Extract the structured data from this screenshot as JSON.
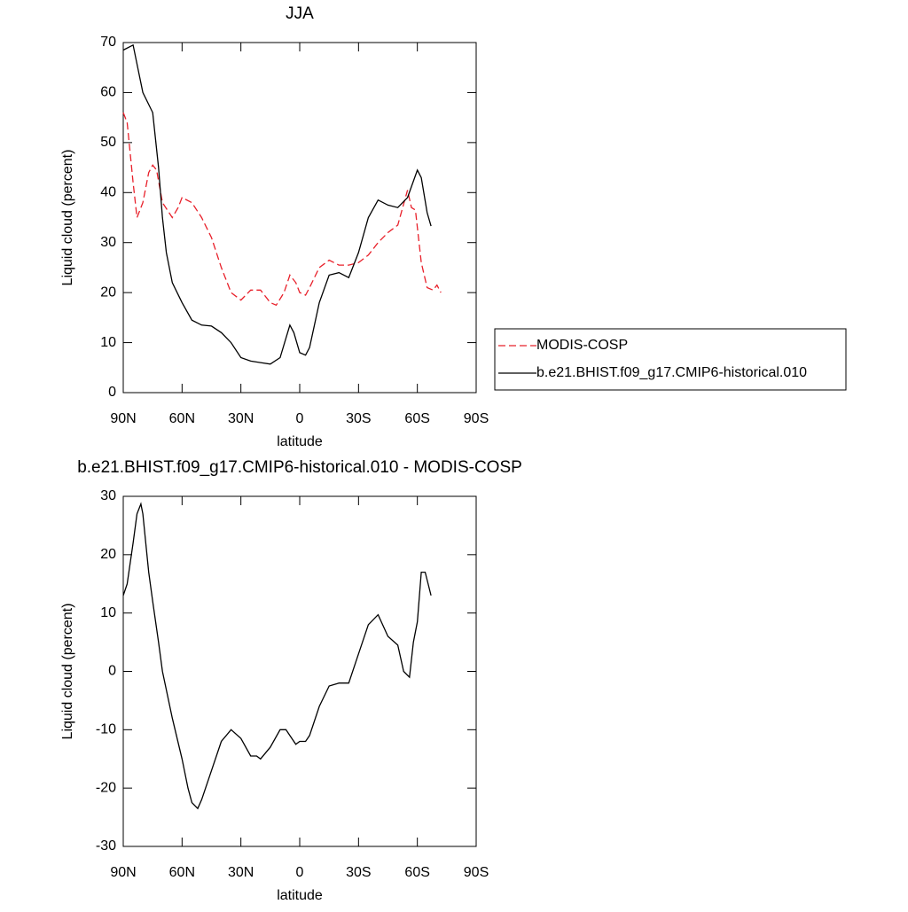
{
  "chart_data": [
    {
      "type": "line",
      "title": "JJA",
      "xlabel": "latitude",
      "ylabel": "Liquid cloud (percent)",
      "xlim": [
        90,
        -90
      ],
      "ylim": [
        0,
        70
      ],
      "xticks": [
        {
          "value": 90,
          "label": "90N"
        },
        {
          "value": 60,
          "label": "60N"
        },
        {
          "value": 30,
          "label": "30N"
        },
        0,
        {
          "value": -30,
          "label": "30S"
        },
        {
          "value": -60,
          "label": "60S"
        },
        {
          "value": -90,
          "label": "90S"
        }
      ],
      "yticks": [
        0,
        10,
        20,
        30,
        40,
        50,
        60,
        70
      ],
      "legend": "right",
      "series": [
        {
          "name": "MODIS-COSP",
          "color": "#e8202a",
          "dash": true,
          "x": [
            90,
            88,
            85,
            83,
            80,
            77,
            75,
            73,
            70,
            65,
            62,
            60,
            55,
            50,
            45,
            40,
            35,
            30,
            25,
            20,
            15,
            12,
            8,
            5,
            2,
            0,
            -3,
            -5,
            -10,
            -15,
            -20,
            -25,
            -30,
            -35,
            -40,
            -45,
            -50,
            -55,
            -57,
            -59,
            -60,
            -62,
            -65,
            -68,
            -70,
            -72
          ],
          "values": [
            56,
            54,
            42,
            35,
            38,
            44,
            45.5,
            44.5,
            38,
            35,
            37,
            39,
            38,
            35,
            31,
            25,
            20,
            18.5,
            20.5,
            20.5,
            18,
            17.5,
            20,
            23.5,
            22,
            20,
            19.5,
            21,
            25,
            26.5,
            25.5,
            25.5,
            26,
            27.5,
            30,
            32,
            33.5,
            40.5,
            37,
            36.5,
            33,
            26,
            21,
            20.5,
            21.5,
            20
          ]
        },
        {
          "name": "b.e21.BHIST.f09_g17.CMIP6-historical.010",
          "color": "#000000",
          "dash": false,
          "x": [
            90,
            85,
            80,
            75,
            72,
            70,
            68,
            65,
            60,
            55,
            50,
            45,
            40,
            35,
            30,
            25,
            20,
            15,
            10,
            5,
            3,
            0,
            -3,
            -5,
            -10,
            -15,
            -20,
            -25,
            -30,
            -35,
            -40,
            -45,
            -50,
            -55,
            -60,
            -62,
            -65,
            -67
          ],
          "values": [
            68.5,
            69.5,
            60,
            56,
            45,
            35,
            28,
            22,
            18,
            14.5,
            13.5,
            13.3,
            12,
            10,
            7,
            6.3,
            6,
            5.7,
            7,
            13.5,
            12,
            8,
            7.5,
            9,
            18,
            23.5,
            24,
            23,
            28,
            35,
            38.5,
            37.5,
            37,
            39,
            44.5,
            43,
            36,
            33.3
          ]
        }
      ]
    },
    {
      "type": "line",
      "title": "b.e21.BHIST.f09_g17.CMIP6-historical.010 - MODIS-COSP",
      "xlabel": "latitude",
      "ylabel": "Liquid cloud (percent)",
      "xlim": [
        90,
        -90
      ],
      "ylim": [
        -30,
        30
      ],
      "xticks": [
        {
          "value": 90,
          "label": "90N"
        },
        {
          "value": 60,
          "label": "60N"
        },
        {
          "value": 30,
          "label": "30N"
        },
        0,
        {
          "value": -30,
          "label": "30S"
        },
        {
          "value": -60,
          "label": "60S"
        },
        {
          "value": -90,
          "label": "90S"
        }
      ],
      "yticks": [
        -30,
        -20,
        -10,
        0,
        10,
        20,
        30
      ],
      "series": [
        {
          "color": "#000000",
          "dash": false,
          "x": [
            90,
            88,
            85,
            83,
            81,
            80,
            77,
            75,
            72,
            70,
            65,
            60,
            57,
            55,
            52,
            50,
            45,
            40,
            35,
            30,
            25,
            22,
            20,
            15,
            10,
            7,
            5,
            2,
            0,
            -3,
            -5,
            -10,
            -15,
            -20,
            -25,
            -30,
            -35,
            -40,
            -45,
            -50,
            -53,
            -56,
            -58,
            -60,
            -62,
            -64,
            -67
          ],
          "values": [
            13,
            15,
            22,
            27,
            28.7,
            27,
            17,
            12,
            5,
            0,
            -8,
            -15,
            -20,
            -22.5,
            -23.5,
            -22,
            -17,
            -12,
            -10,
            -11.5,
            -14.5,
            -14.5,
            -15,
            -13,
            -10,
            -10,
            -11,
            -12.5,
            -12,
            -12,
            -11,
            -6,
            -2.5,
            -2,
            -2,
            3,
            8,
            9.7,
            6,
            4.5,
            0,
            -1,
            5,
            8.5,
            17,
            17,
            13
          ]
        }
      ]
    }
  ]
}
